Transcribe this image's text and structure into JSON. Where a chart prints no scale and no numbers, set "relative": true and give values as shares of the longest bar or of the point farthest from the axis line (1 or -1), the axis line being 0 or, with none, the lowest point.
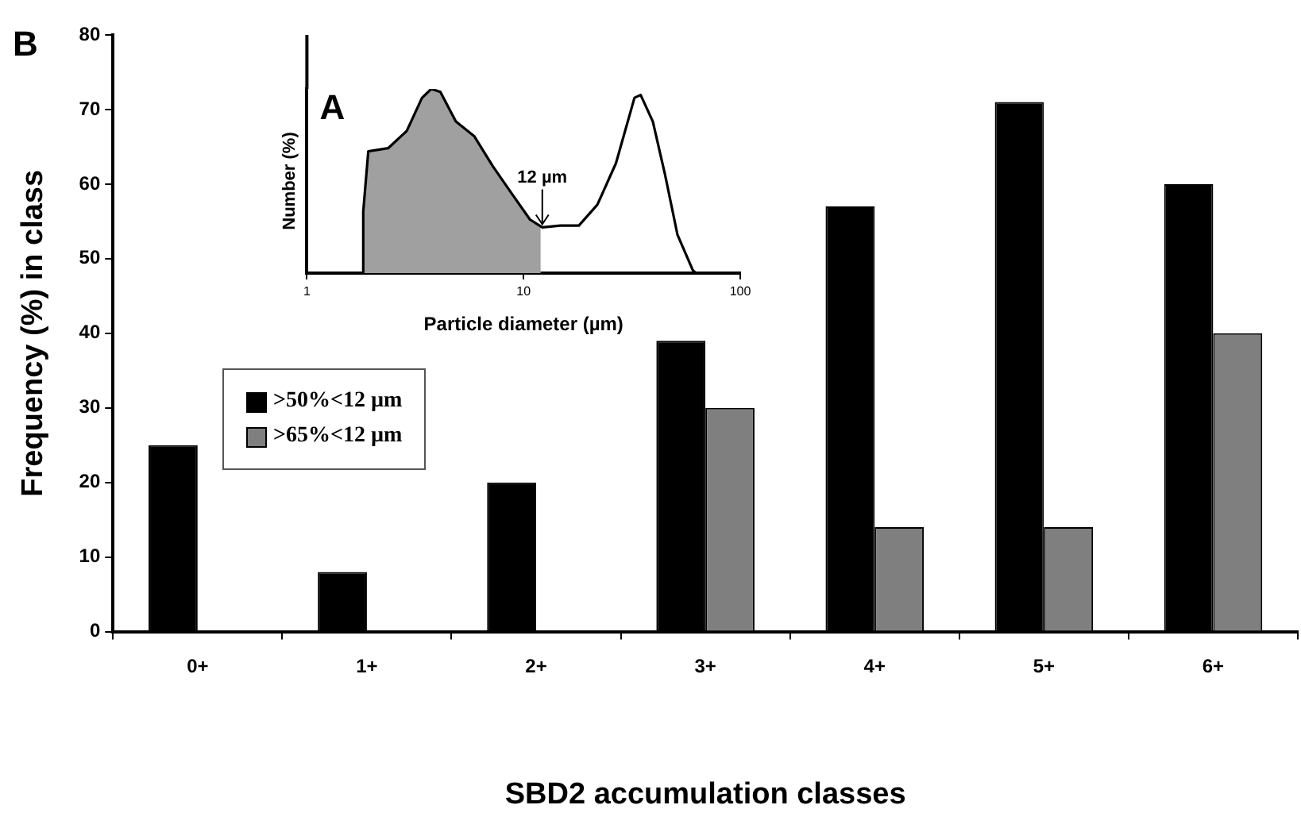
{
  "chart_data": [
    {
      "type": "bar",
      "title": "B",
      "xlabel": "SBD2 accumulation classes",
      "ylabel": "Frequency (%) in class",
      "categories": [
        "0+",
        "1+",
        "2+",
        "3+",
        "4+",
        "5+",
        "6+"
      ],
      "series": [
        {
          "name": ">50%<12 µm",
          "color": "#000000",
          "values": [
            25,
            8,
            20,
            39,
            57,
            71,
            60
          ]
        },
        {
          "name": ">65%<12 µm",
          "color": "#7f7f7f",
          "values": [
            null,
            null,
            null,
            30,
            14,
            14,
            40
          ]
        }
      ],
      "ylim": [
        0,
        80
      ],
      "yticks": [
        0,
        10,
        20,
        30,
        40,
        50,
        60,
        70,
        80
      ],
      "grid": false,
      "legend": "left"
    },
    {
      "type": "line",
      "title": "A",
      "xlabel": "Particle diameter (µm)",
      "ylabel": "Number (%)",
      "relative": true,
      "log": "x",
      "xlim": [
        1,
        100
      ],
      "xticks": [
        1,
        10,
        100
      ],
      "tick_labels": "x",
      "grid": false,
      "legend": false,
      "marker": "none",
      "series": [
        {
          "type": "area",
          "color": "#a0a0a0",
          "x": [
            1.8,
            1.82,
            1.92,
            2.37,
            2.89,
            3.4,
            3.75,
            4.13,
            4.87,
            5.93,
            7.21,
            8.77,
            10.7,
            12.0
          ],
          "values": [
            0,
            0.335,
            0.661,
            0.678,
            0.772,
            0.952,
            1,
            0.984,
            0.823,
            0.742,
            0.58,
            0.436,
            0.291,
            0.254
          ]
        },
        {
          "type": "line",
          "color": "#000000",
          "x": [
            1.8,
            1.82,
            1.92,
            2.37,
            2.89,
            3.4,
            3.75,
            4.13,
            4.87,
            5.93,
            7.21,
            8.77,
            10.7,
            12.2,
            14.8,
            18.0,
            21.9,
            26.7,
            32.5,
            34.7,
            39.5,
            45.0,
            51.3,
            60.4,
            62.4
          ],
          "values": [
            0,
            0.335,
            0.661,
            0.678,
            0.772,
            0.952,
            1,
            0.984,
            0.823,
            0.742,
            0.58,
            0.436,
            0.291,
            0.248,
            0.258,
            0.258,
            0.371,
            0.597,
            0.952,
            0.967,
            0.823,
            0.533,
            0.209,
            0.016,
            0
          ]
        }
      ],
      "annotations": [
        {
          "text": "12 µm",
          "x": 12.2,
          "y": 0.248
        }
      ]
    }
  ]
}
